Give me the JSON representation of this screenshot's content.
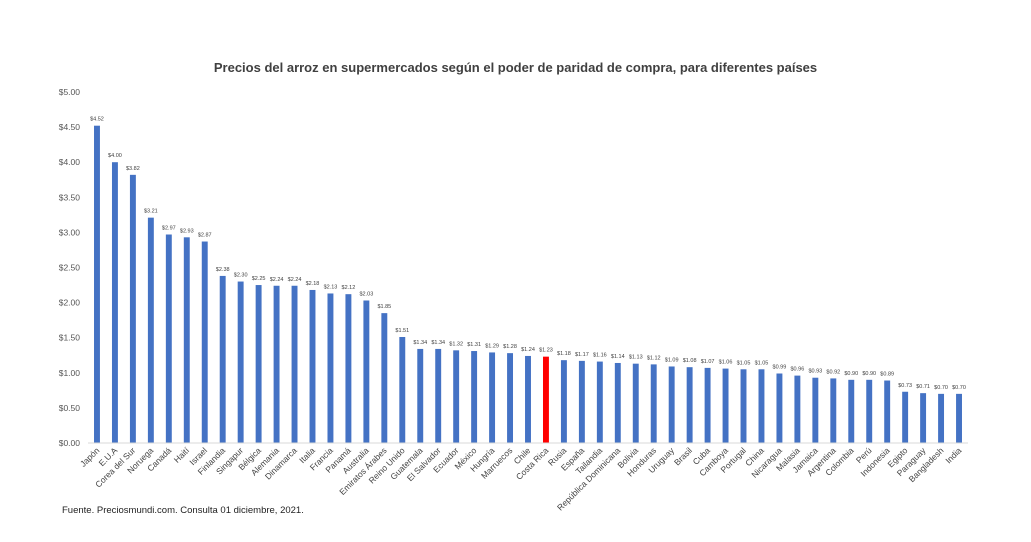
{
  "chart_data": {
    "type": "bar",
    "title": "Precios del arroz en supermercados según el poder de paridad de compra, para diferentes países",
    "xlabel": "",
    "ylabel": "",
    "ylim": [
      0,
      5
    ],
    "yticks": [
      "$0.00",
      "$0.50",
      "$1.00",
      "$1.50",
      "$2.00",
      "$2.50",
      "$3.00",
      "$3.50",
      "$4.00",
      "$4.50",
      "$5.00"
    ],
    "grid": false,
    "legend": "none",
    "bar_color": "#4472C4",
    "highlight_color": "#FF0000",
    "highlight_category": "Costa Rica",
    "categories": [
      "Japón",
      "E.U.A",
      "Corea del Sur",
      "Noruega",
      "Canadá",
      "Haití",
      "Israel",
      "Finlandia",
      "Singapur",
      "Bélgica",
      "Alemania",
      "Dinamarca",
      "Italia",
      "Francia",
      "Panamá",
      "Australia",
      "Emiratos Árabes",
      "Reino Unido",
      "Guatemala",
      "El Salvador",
      "Ecuador",
      "México",
      "Hungría",
      "Marruecos",
      "Chile",
      "Costa Rica",
      "Rusia",
      "España",
      "Tailandia",
      "República Dominicana",
      "Bolivia",
      "Honduras",
      "Uruguay",
      "Brasil",
      "Cuba",
      "Camboya",
      "Portugal",
      "China",
      "Nicaragua",
      "Malasia",
      "Jamaica",
      "Argentina",
      "Colombia",
      "Perú",
      "Indonesia",
      "Egipto",
      "Paraguay",
      "Bangladesh",
      "India"
    ],
    "values": [
      4.52,
      4.0,
      3.82,
      3.21,
      2.97,
      2.93,
      2.87,
      2.38,
      2.3,
      2.25,
      2.24,
      2.24,
      2.18,
      2.13,
      2.12,
      2.03,
      1.85,
      1.51,
      1.34,
      1.34,
      1.32,
      1.31,
      1.29,
      1.28,
      1.24,
      1.23,
      1.18,
      1.17,
      1.16,
      1.14,
      1.13,
      1.12,
      1.09,
      1.08,
      1.07,
      1.06,
      1.05,
      1.05,
      0.99,
      0.96,
      0.93,
      0.92,
      0.9,
      0.9,
      0.89,
      0.73,
      0.71,
      0.7,
      0.7
    ],
    "data_labels": [
      "$4.52",
      "$4.00",
      "$3.82",
      "$3.21",
      "$2.97",
      "$2.93",
      "$2.87",
      "$2.38",
      "$2.30",
      "$2.25",
      "$2.24",
      "$2.24",
      "$2.18",
      "$2.13",
      "$2.12",
      "$2.03",
      "$1.85",
      "$1.51",
      "$1.34",
      "$1.34",
      "$1.32",
      "$1.31",
      "$1.29",
      "$1.28",
      "$1.24",
      "$1.23",
      "$1.18",
      "$1.17",
      "$1.16",
      "$1.14",
      "$1.13",
      "$1.12",
      "$1.09",
      "$1.08",
      "$1.07",
      "$1.06",
      "$1.05",
      "$1.05",
      "$0.99",
      "$0.96",
      "$0.93",
      "$0.92",
      "$0.90",
      "$0.90",
      "$0.89",
      "$0.73",
      "$0.71",
      "$0.70",
      "$0.70"
    ]
  },
  "footer": {
    "source": "Fuente. Preciosmundi.com. Consulta 01 diciembre, 2021."
  }
}
